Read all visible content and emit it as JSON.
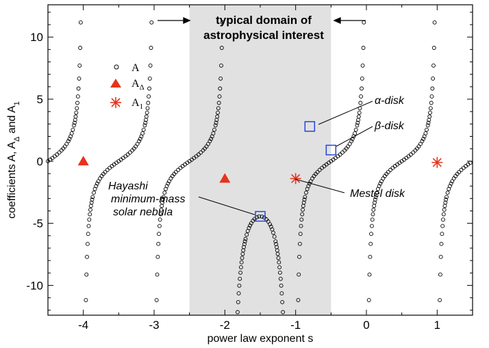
{
  "chart_data": {
    "type": "scatter",
    "xlabel": "power law exponent s",
    "ylabel": {
      "main": "coefficients A, A",
      "sub1": "Δ",
      "mid": " and A",
      "sub2": "1"
    },
    "xlim": [
      -4.5,
      1.5
    ],
    "ylim": [
      -12.4,
      12.6
    ],
    "x_ticks": [
      "-4",
      "-3",
      "-2",
      "-1",
      "0",
      "1"
    ],
    "y_ticks": [
      "-10",
      "-5",
      "0",
      "5",
      "10"
    ],
    "shaded_region": {
      "x": [
        -2.5,
        -0.5
      ],
      "label_line1": "typical domain of",
      "label_line2": "astrophysical interest"
    },
    "legend": {
      "placement": "upper-left",
      "entries": [
        {
          "symbol": "circle",
          "text": "A",
          "sub": ""
        },
        {
          "symbol": "triangle",
          "text": "A",
          "sub": "Δ"
        },
        {
          "symbol": "asterisk",
          "text": "A",
          "sub": "1"
        }
      ]
    },
    "series": [
      {
        "name": "A",
        "symbol": "circle",
        "curve_asymptotes": [
          -4,
          -3,
          -2,
          -1,
          0,
          1
        ],
        "sample_points": [
          [
            -4.2,
            1.2
          ],
          [
            -3.5,
            0.35
          ],
          [
            -2.2,
            1.8
          ],
          [
            -1.5,
            -4.4
          ],
          [
            -0.8,
            2.8
          ],
          [
            -0.5,
            0.9
          ],
          [
            0.5,
            -0.4
          ],
          [
            1.2,
            1.0
          ]
        ]
      },
      {
        "name": "AΔ",
        "symbol": "triangle",
        "color": "#e8321c",
        "points": [
          [
            -4,
            0
          ],
          [
            -2,
            -1.4
          ]
        ]
      },
      {
        "name": "A1",
        "symbol": "asterisk",
        "color": "#e8321c",
        "points": [
          [
            -1,
            -1.4
          ],
          [
            1,
            -0.1
          ]
        ]
      }
    ],
    "highlight_color": "#2343d8",
    "annotations": [
      {
        "text": "α-disk",
        "point": [
          -0.8,
          2.8
        ]
      },
      {
        "text": "β-disk",
        "point": [
          -0.5,
          0.9
        ]
      },
      {
        "text": "Mestel disk",
        "point": [
          -1,
          -1.4
        ]
      },
      {
        "line1": "Hayashi",
        "line2": "minimum-mass",
        "line3": "solar nebula",
        "point": [
          -1.5,
          -4.44
        ]
      }
    ]
  }
}
